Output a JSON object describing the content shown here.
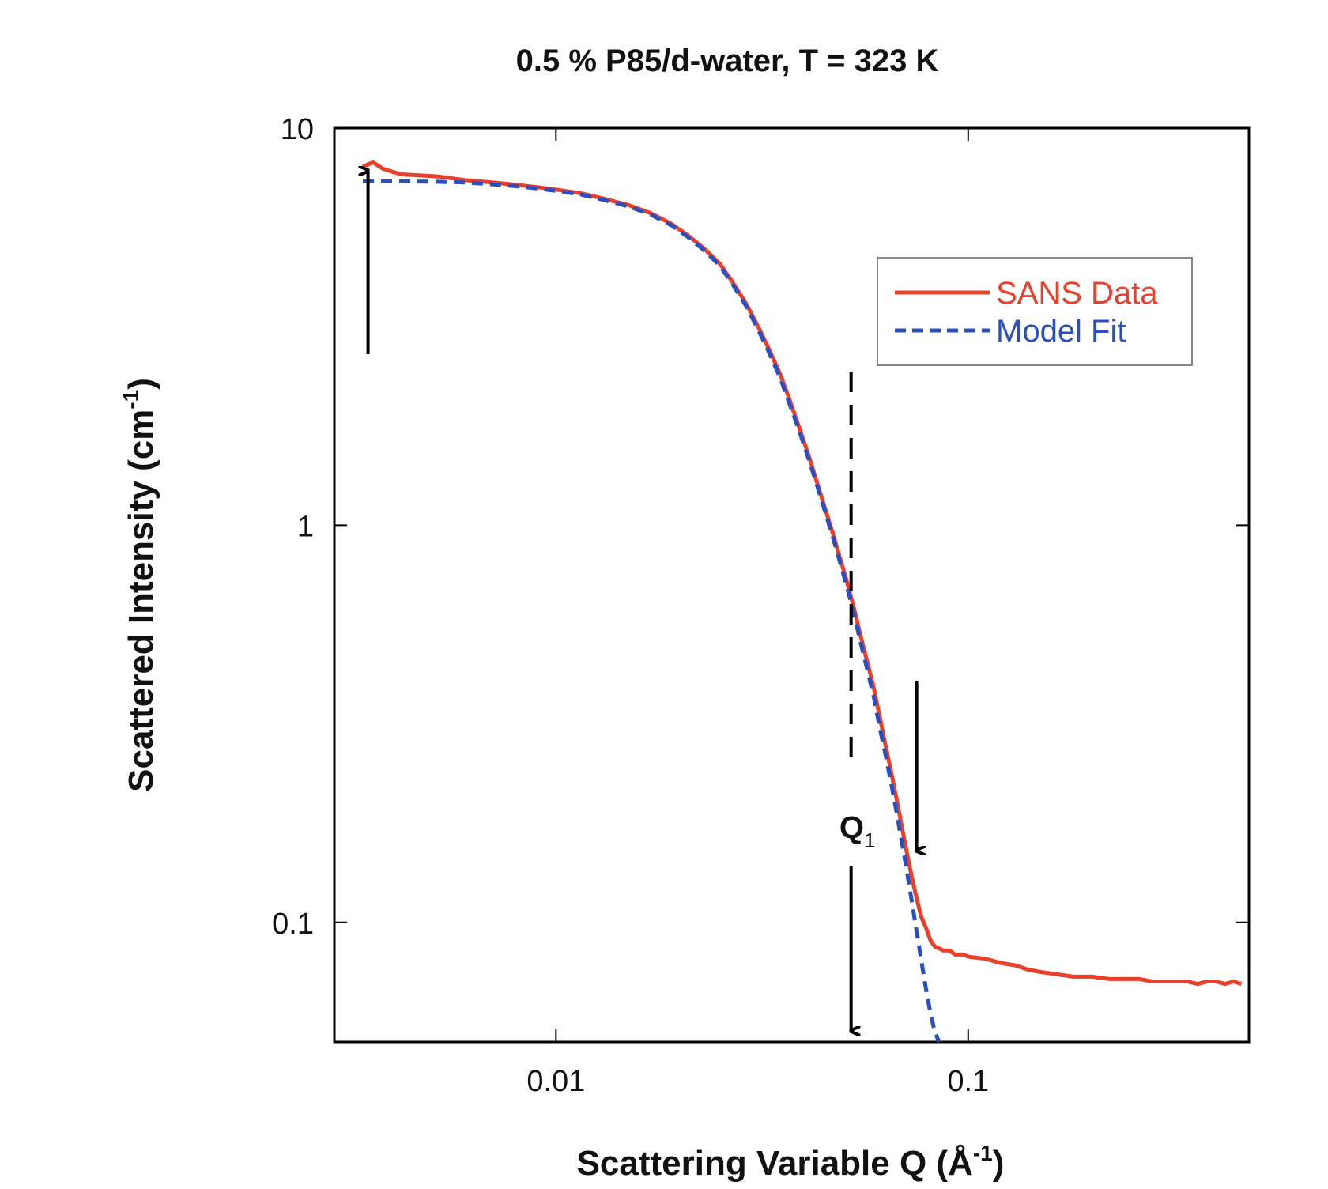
{
  "chart_data": {
    "type": "line",
    "title": "0.5 % P85/d-water, T = 323 K",
    "xlabel": {
      "main": "Scattering Variable Q (Å",
      "sup": "-1",
      "close": ")"
    },
    "ylabel": {
      "main": "Scattered Intensity (cm",
      "sup": "-1",
      "close": ")"
    },
    "xscale": "log",
    "yscale": "log",
    "xlim": [
      0.0029,
      0.48
    ],
    "ylim": [
      0.05,
      10
    ],
    "x_ticks": [
      {
        "value": 0.01,
        "label": "0.01"
      },
      {
        "value": 0.1,
        "label": "0.1"
      }
    ],
    "y_ticks": [
      {
        "value": 10,
        "label": "10"
      },
      {
        "value": 1,
        "label": "1"
      },
      {
        "value": 0.1,
        "label": "0.1"
      }
    ],
    "grid": false,
    "legend_position": "top-right",
    "series": [
      {
        "name": "SANS Data",
        "color": "#e8402a",
        "style": "solid",
        "x": [
          0.0034,
          0.0036,
          0.0038,
          0.0042,
          0.0047,
          0.0052,
          0.006,
          0.007,
          0.008,
          0.009,
          0.01,
          0.0115,
          0.013,
          0.015,
          0.017,
          0.019,
          0.021,
          0.023,
          0.025,
          0.027,
          0.029,
          0.031,
          0.033,
          0.035,
          0.037,
          0.039,
          0.041,
          0.043,
          0.045,
          0.047,
          0.049,
          0.051,
          0.053,
          0.055,
          0.057,
          0.059,
          0.061,
          0.063,
          0.065,
          0.067,
          0.069,
          0.071,
          0.073,
          0.075,
          0.077,
          0.079,
          0.081,
          0.083,
          0.085,
          0.087,
          0.09,
          0.093,
          0.097,
          0.1,
          0.11,
          0.12,
          0.13,
          0.14,
          0.15,
          0.165,
          0.18,
          0.2,
          0.22,
          0.24,
          0.26,
          0.28,
          0.3,
          0.32,
          0.34,
          0.36,
          0.38,
          0.4,
          0.42,
          0.44,
          0.46
        ],
        "y": [
          8.0,
          8.2,
          7.9,
          7.65,
          7.6,
          7.55,
          7.4,
          7.3,
          7.2,
          7.1,
          7.0,
          6.85,
          6.65,
          6.4,
          6.1,
          5.75,
          5.35,
          4.95,
          4.55,
          4.05,
          3.6,
          3.15,
          2.75,
          2.4,
          2.05,
          1.75,
          1.5,
          1.28,
          1.1,
          0.95,
          0.82,
          0.71,
          0.61,
          0.52,
          0.45,
          0.39,
          0.33,
          0.28,
          0.24,
          0.205,
          0.175,
          0.15,
          0.13,
          0.115,
          0.103,
          0.097,
          0.09,
          0.087,
          0.086,
          0.085,
          0.085,
          0.083,
          0.083,
          0.082,
          0.081,
          0.079,
          0.078,
          0.076,
          0.075,
          0.074,
          0.073,
          0.073,
          0.072,
          0.072,
          0.072,
          0.071,
          0.071,
          0.071,
          0.071,
          0.07,
          0.071,
          0.071,
          0.07,
          0.071,
          0.07
        ]
      },
      {
        "name": "Model Fit",
        "color": "#2b4fbf",
        "style": "dashed",
        "x": [
          0.0034,
          0.004,
          0.005,
          0.006,
          0.007,
          0.008,
          0.009,
          0.01,
          0.0115,
          0.013,
          0.015,
          0.017,
          0.019,
          0.021,
          0.023,
          0.025,
          0.027,
          0.029,
          0.031,
          0.033,
          0.035,
          0.037,
          0.039,
          0.041,
          0.043,
          0.045,
          0.047,
          0.049,
          0.051,
          0.053,
          0.055,
          0.057,
          0.059,
          0.061,
          0.063,
          0.065,
          0.067,
          0.069,
          0.071,
          0.073,
          0.075,
          0.077,
          0.079,
          0.081,
          0.083,
          0.085
        ],
        "y": [
          7.35,
          7.35,
          7.33,
          7.3,
          7.22,
          7.14,
          7.05,
          6.95,
          6.8,
          6.6,
          6.35,
          6.05,
          5.7,
          5.3,
          4.9,
          4.5,
          4.0,
          3.55,
          3.1,
          2.7,
          2.35,
          2.0,
          1.72,
          1.47,
          1.26,
          1.08,
          0.93,
          0.8,
          0.69,
          0.59,
          0.5,
          0.43,
          0.37,
          0.31,
          0.265,
          0.225,
          0.19,
          0.16,
          0.135,
          0.113,
          0.095,
          0.08,
          0.068,
          0.059,
          0.053,
          0.05
        ]
      }
    ],
    "annotations": {
      "q1_label": "Q",
      "q1_sub": "1",
      "q1_x": 0.052,
      "arrow_left_x": 0.0035,
      "arrow_right_x": 0.075
    }
  }
}
